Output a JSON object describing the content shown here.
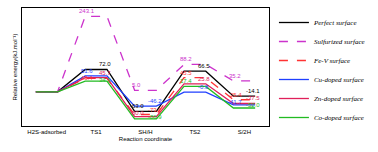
{
  "chart_data": {
    "type": "energy_profile",
    "x_label": "Reaction coordinate",
    "y_label": "Relative energy(kJ.mol⁻¹)",
    "categories": [
      "H2S-adsorbed",
      "TS1",
      "SH/H",
      "TS2",
      "S/2H"
    ],
    "ylim": [
      -110,
      270
    ],
    "grid": false,
    "legend": "top right",
    "tick_labels": "x",
    "data_labels": true,
    "series": [
      {
        "name": "Perfect surface",
        "color": "#000000",
        "line_style": "solid",
        "values": [
          0,
          72.0,
          -63.0,
          66.5,
          -14.1
        ],
        "value_labels": [
          null,
          "72.0",
          "-63.0",
          "66.5",
          "-14.1"
        ]
      },
      {
        "name": "Sulfurized surface",
        "color": "#cc33cc",
        "line_style": "dash",
        "values": [
          0,
          243.1,
          5.0,
          88.2,
          35.2
        ],
        "value_labels": [
          null,
          "243.1",
          "5.0",
          "88.2",
          "35.2"
        ]
      },
      {
        "name": "Fe-V surface",
        "color": "#ff3333",
        "line_style": "dash",
        "values": [
          0,
          43.4,
          -73.0,
          45.5,
          -25.4
        ],
        "value_labels": [
          null,
          "43.4",
          "-73.0",
          "45.5",
          "-25.4"
        ]
      },
      {
        "name": "Cu-doped surface",
        "color": "#1f3fff",
        "line_style": "solid",
        "values": [
          0,
          51.6,
          -46.2,
          -0.8,
          -41.7
        ],
        "value_labels": [
          null,
          "51.6",
          "-46.2",
          "-0.8",
          "-41.7"
        ]
      },
      {
        "name": "Zn-doped surface",
        "color": "#e0205a",
        "line_style": "solid",
        "values": [
          0,
          45.7,
          -80.0,
          25.8,
          -37.5
        ],
        "value_labels": [
          null,
          "45.7",
          "-80.0",
          "25.8",
          "-37.5"
        ]
      },
      {
        "name": "Co-doped surface",
        "color": "#22bb22",
        "line_style": "solid",
        "values": [
          0,
          34.3,
          -86.9,
          17.4,
          -52.0
        ],
        "value_labels": [
          null,
          "34.3",
          "-86.9",
          "17.4",
          "-52.0"
        ]
      }
    ]
  }
}
